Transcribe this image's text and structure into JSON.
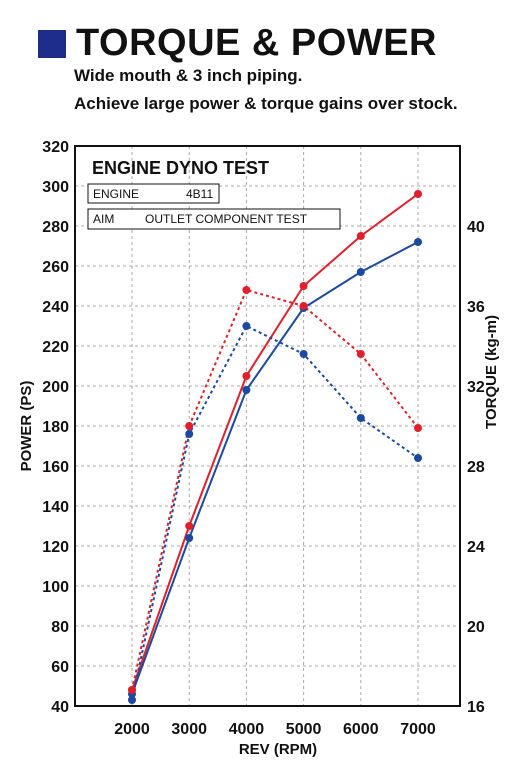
{
  "header": {
    "title": "TORQUE & POWER",
    "subtitle_lines": [
      "Wide mouth & 3 inch piping.",
      "Achieve large power & torque gains over stock."
    ]
  },
  "panel": {
    "title": "ENGINE DYNO TEST",
    "engine_label": "ENGINE",
    "engine_value": "4B11",
    "aim_label": "AIM",
    "aim_value": "OUTLET COMPONENT TEST"
  },
  "chart_data": {
    "type": "line",
    "xlabel": "REV (RPM)",
    "ylabel": "POWER (PS)",
    "y2label": "TORQUE (kg-m)",
    "x": [
      2000,
      3000,
      4000,
      5000,
      6000,
      7000
    ],
    "xticks": [
      "2000",
      "3000",
      "4000",
      "5000",
      "6000",
      "7000"
    ],
    "ylim": [
      40,
      320
    ],
    "yticks": [
      "40",
      "60",
      "80",
      "100",
      "120",
      "140",
      "160",
      "180",
      "200",
      "220",
      "240",
      "260",
      "280",
      "300",
      "320"
    ],
    "y2ticks": [
      "16",
      "20",
      "24",
      "28",
      "32",
      "36",
      "40"
    ],
    "y2lim": [
      16,
      44
    ],
    "grid": true,
    "series": [
      {
        "axis": "power",
        "color": "#e0202a",
        "style": "solid",
        "values": [
          48,
          130,
          205,
          250,
          275,
          296
        ]
      },
      {
        "axis": "power",
        "color": "#1c4aa0",
        "style": "solid",
        "values": [
          46,
          124,
          198,
          239,
          257,
          272
        ]
      },
      {
        "axis": "torque",
        "color": "#e0202a",
        "style": "dotted",
        "values": [
          16.8,
          30.0,
          36.8,
          36.0,
          33.6,
          29.9
        ]
      },
      {
        "axis": "torque",
        "color": "#1c4aa0",
        "style": "dotted",
        "values": [
          16.3,
          29.6,
          35.0,
          33.6,
          30.4,
          28.4
        ]
      }
    ]
  },
  "colors": {
    "header_square": "#1f2d8a",
    "grid": "#aaaaaa"
  }
}
